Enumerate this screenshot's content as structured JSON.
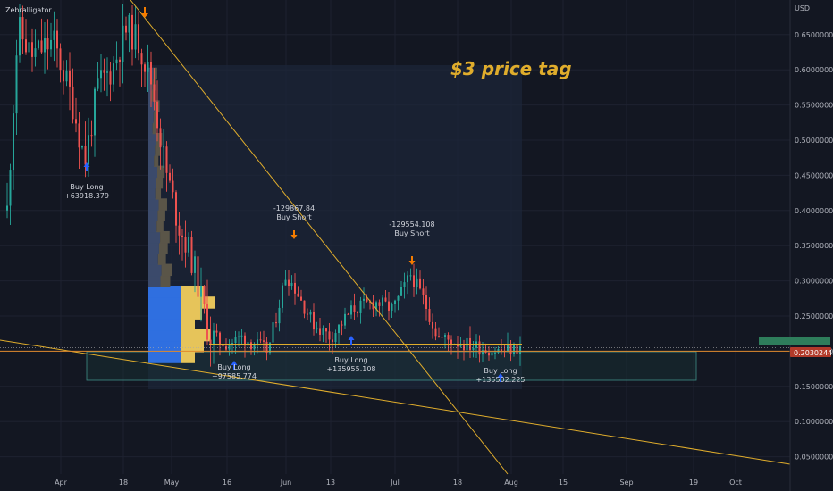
{
  "brand": "Zebralligator",
  "headline": "$3 price tag",
  "chart_data": {
    "type": "candlestick",
    "currency": "USD",
    "y_range": [
      0.02,
      0.7
    ],
    "y_ticks": [
      "0.65000000",
      "0.60000000",
      "0.55000000",
      "0.50000000",
      "0.45000000",
      "0.40000000",
      "0.35000000",
      "0.30000000",
      "0.25000000",
      "0.20000000",
      "0.15000000",
      "0.10000000",
      "0.05000000"
    ],
    "x_labels": [
      "Apr",
      "18",
      "May",
      "16",
      "Jun",
      "13",
      "Jul",
      "18",
      "Aug",
      "15",
      "Sep",
      "19",
      "Oct"
    ],
    "last_price": "0.20302443",
    "signals": [
      {
        "type": "Buy Long",
        "value": "+63918.379"
      },
      {
        "type": "Buy Short",
        "value": "-129867.84"
      },
      {
        "type": "Buy Long",
        "value": "+97585.774"
      },
      {
        "type": "Buy Long",
        "value": "+135955.108"
      },
      {
        "type": "Buy Short",
        "value": "-129554.108"
      },
      {
        "type": "Buy Long",
        "value": "+135502.225"
      }
    ],
    "colors": {
      "up": "#26a69a",
      "down": "#ef5350",
      "trendline": "#e0ad2c",
      "accent_buy": "#2962ff",
      "accent_sell": "#f57c00"
    }
  }
}
